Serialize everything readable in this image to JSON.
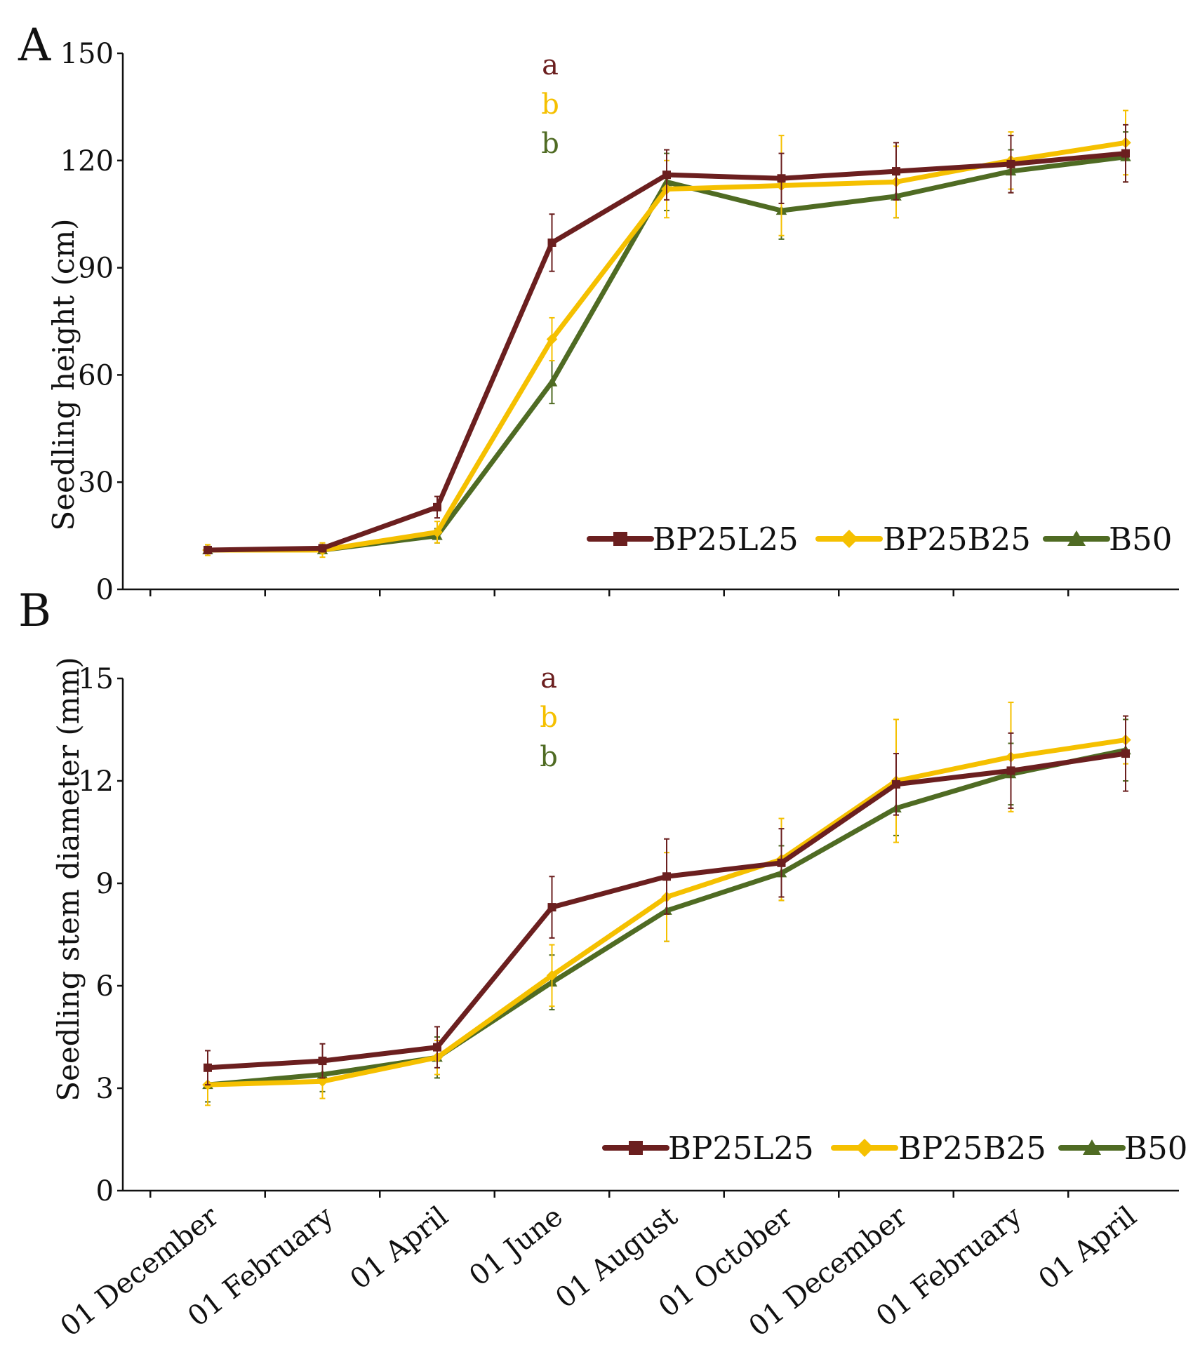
{
  "colors": {
    "BP25L25": "#6b1f1f",
    "BP25B25": "#f5c000",
    "B50": "#4f6b23",
    "axis": "#111111"
  },
  "chart_data": [
    {
      "type": "line",
      "panel_label": "A",
      "ylabel": "Seedling height (cm)",
      "xlabel": "",
      "ylim": [
        0,
        150
      ],
      "yticks": [
        0,
        30,
        60,
        90,
        120,
        150
      ],
      "categories": [
        "01 December",
        "01 February",
        "01 April",
        "01 June",
        "01 August",
        "01 October",
        "01 December",
        "01 February",
        "01 April"
      ],
      "grid": false,
      "legend_position": "bottom-right",
      "series": [
        {
          "name": "BP25L25",
          "marker": "square",
          "values": [
            11,
            11.5,
            23,
            97,
            116,
            115,
            117,
            119,
            122
          ],
          "errors": [
            1,
            1,
            3,
            8,
            7,
            7,
            8,
            8,
            8
          ]
        },
        {
          "name": "BP25B25",
          "marker": "diamond",
          "values": [
            11,
            11,
            16,
            70,
            112,
            113,
            114,
            120,
            125
          ],
          "errors": [
            1.5,
            2,
            3,
            6,
            8,
            14,
            10,
            8,
            9
          ]
        },
        {
          "name": "B50",
          "marker": "triangle",
          "values": [
            11,
            11,
            15,
            58,
            114,
            106,
            110,
            117,
            121
          ],
          "errors": [
            1,
            1,
            2,
            6,
            8,
            8,
            6,
            6,
            7
          ]
        }
      ],
      "significance_letters": [
        {
          "series": "BP25L25",
          "letter": "a"
        },
        {
          "series": "BP25B25",
          "letter": "b"
        },
        {
          "series": "B50",
          "letter": "b"
        }
      ]
    },
    {
      "type": "line",
      "panel_label": "B",
      "ylabel": "Seedling stem diameter (mm)",
      "xlabel": "",
      "ylim": [
        0,
        15
      ],
      "yticks": [
        0,
        3,
        6,
        9,
        12,
        15
      ],
      "categories": [
        "01 December",
        "01 February",
        "01 April",
        "01 June",
        "01 August",
        "01 October",
        "01 December",
        "01 February",
        "01 April"
      ],
      "grid": false,
      "legend_position": "bottom-right",
      "series": [
        {
          "name": "BP25L25",
          "marker": "square",
          "values": [
            3.6,
            3.8,
            4.2,
            8.3,
            9.2,
            9.6,
            11.9,
            12.3,
            12.8
          ],
          "errors": [
            0.5,
            0.5,
            0.6,
            0.9,
            1.1,
            1.0,
            0.9,
            1.1,
            1.1
          ]
        },
        {
          "name": "BP25B25",
          "marker": "diamond",
          "values": [
            3.1,
            3.2,
            3.9,
            6.3,
            8.6,
            9.7,
            12.0,
            12.7,
            13.2
          ],
          "errors": [
            0.6,
            0.5,
            0.5,
            0.9,
            1.3,
            1.2,
            1.8,
            1.6,
            0.7
          ]
        },
        {
          "name": "B50",
          "marker": "triangle",
          "values": [
            3.1,
            3.4,
            3.9,
            6.1,
            8.2,
            9.3,
            11.2,
            12.2,
            12.9
          ],
          "errors": [
            0.5,
            0.5,
            0.6,
            0.8,
            0.9,
            0.8,
            0.8,
            0.9,
            0.9
          ]
        }
      ],
      "significance_letters": [
        {
          "series": "BP25L25",
          "letter": "a"
        },
        {
          "series": "BP25B25",
          "letter": "b"
        },
        {
          "series": "B50",
          "letter": "b"
        }
      ]
    }
  ]
}
